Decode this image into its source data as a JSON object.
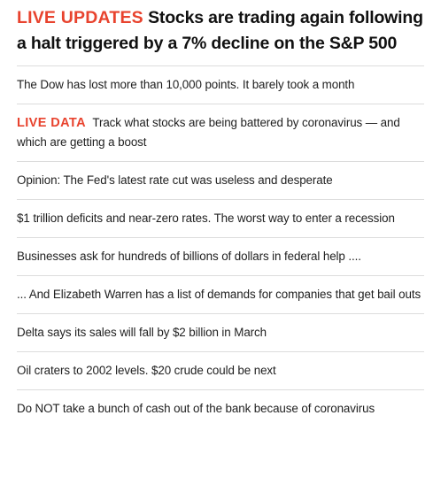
{
  "headline": {
    "tag": "LIVE UPDATES",
    "text": "Stocks are trading again following a halt triggered by a 7% decline on the S&P 500"
  },
  "stories": [
    {
      "tag": "",
      "text": "The Dow has lost more than 10,000 points. It barely took a month"
    },
    {
      "tag": "LIVE DATA",
      "text": "Track what stocks are being battered by coronavirus — and which are getting a boost"
    },
    {
      "tag": "",
      "text": "Opinion: The Fed's latest rate cut was useless and desperate"
    },
    {
      "tag": "",
      "text": "$1 trillion deficits and near-zero rates. The worst way to enter a recession"
    },
    {
      "tag": "",
      "text": "Businesses ask for hundreds of billions of dollars in federal help ...."
    },
    {
      "tag": "",
      "text": "... And Elizabeth Warren has a list of demands for companies that get bail outs"
    },
    {
      "tag": "",
      "text": "Delta says its sales will fall by $2 billion in March"
    },
    {
      "tag": "",
      "text": "Oil craters to 2002 levels. $20 crude could be next"
    },
    {
      "tag": "",
      "text": "Do NOT take a bunch of cash out of the bank because of coronavirus"
    }
  ],
  "colors": {
    "accent": "#e8432e",
    "divider": "#dcdcdc",
    "text": "#1f1f1f"
  }
}
